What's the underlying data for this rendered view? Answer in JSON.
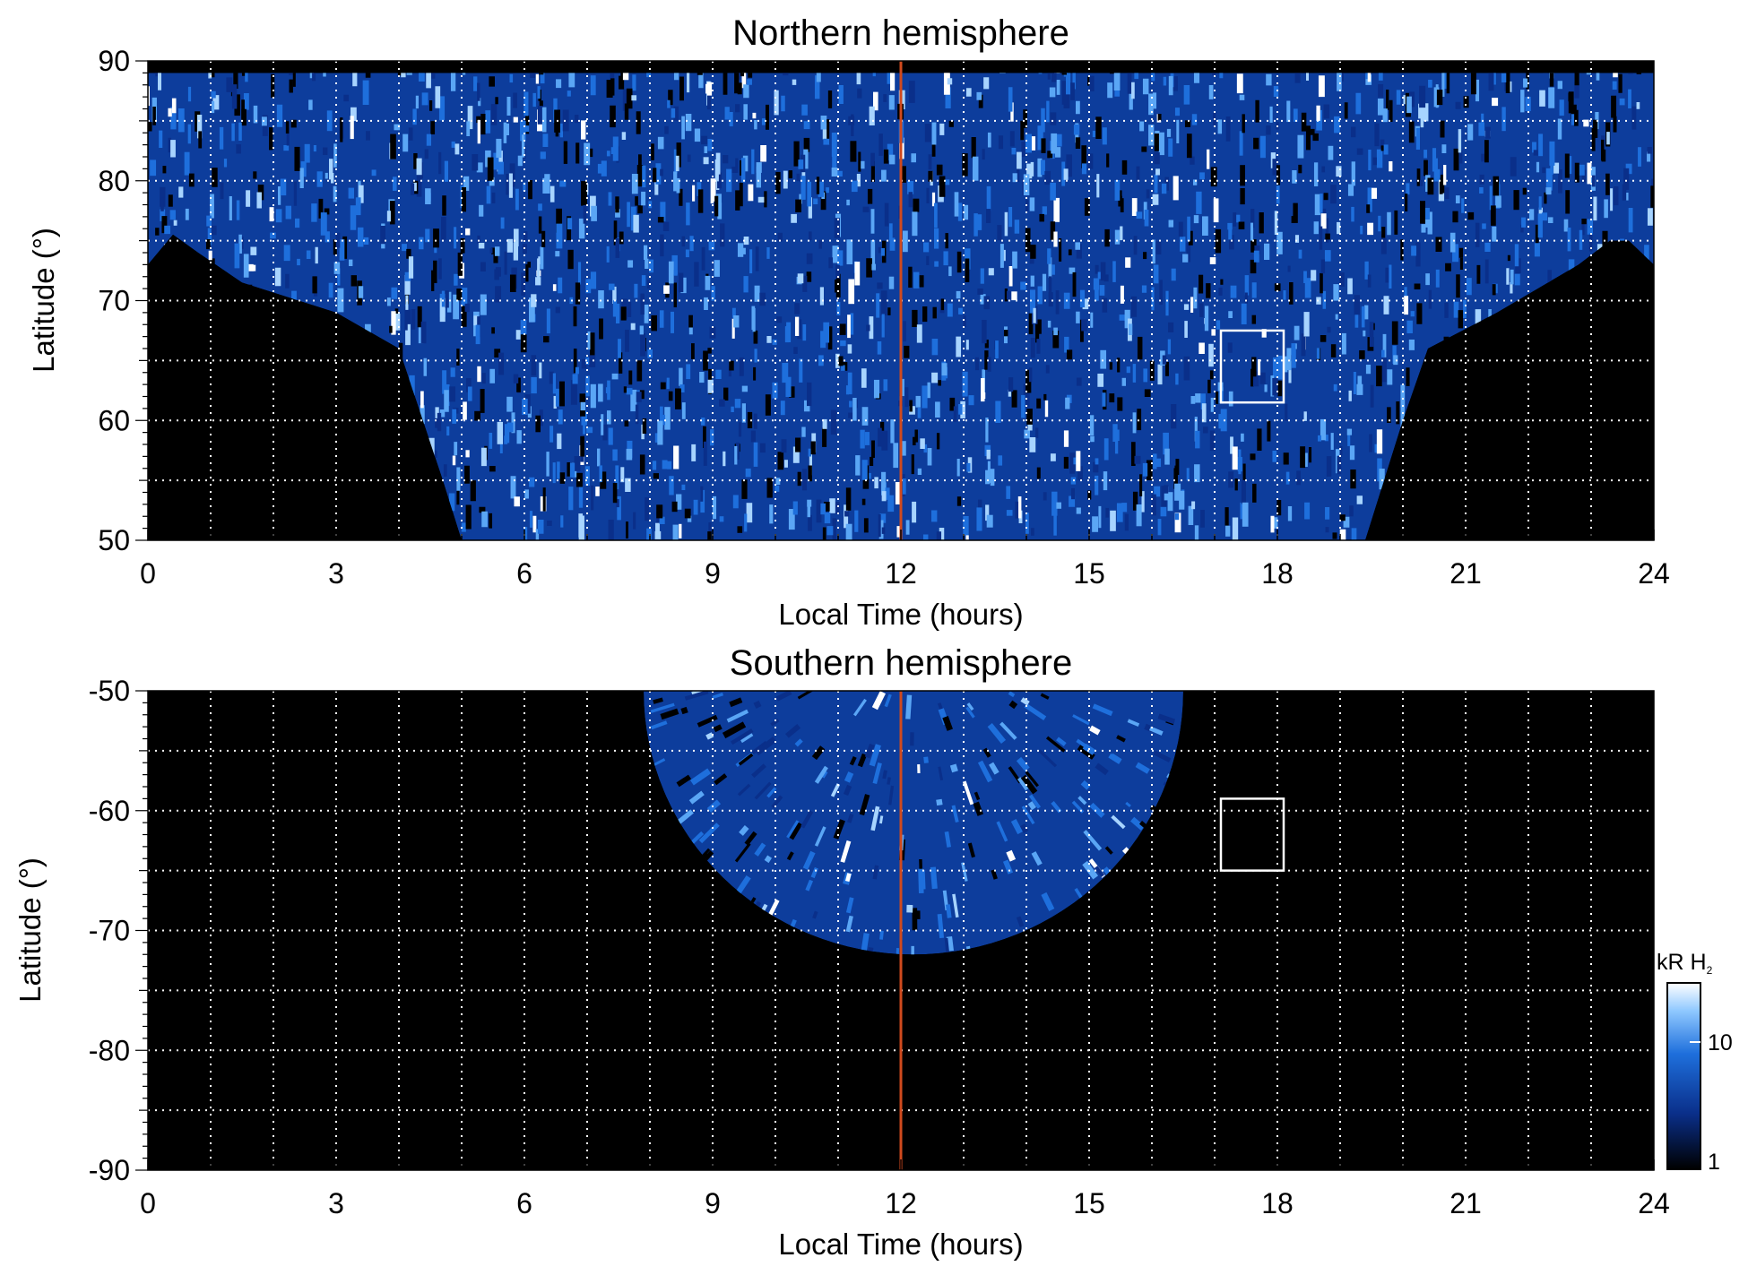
{
  "chart_data": [
    {
      "type": "heatmap",
      "title": "Northern hemisphere",
      "xlabel": "Local Time (hours)",
      "ylabel": "Latitude (°)",
      "xlim": [
        0,
        24
      ],
      "ylim": [
        50,
        90
      ],
      "x_ticks": [
        "0",
        "3",
        "6",
        "9",
        "12",
        "15",
        "18",
        "21",
        "24"
      ],
      "y_ticks": [
        "50",
        "60",
        "70",
        "80",
        "90"
      ],
      "grid": "dotted white, every 1 h and 5°",
      "noon_line": {
        "x": 12,
        "color": "#d04a1e"
      },
      "box": {
        "x": [
          17.1,
          18.1
        ],
        "y": [
          61.5,
          67.5
        ]
      },
      "coverage": "fan of emission from ~73° at 0/24 h down to 50° between 5 and 19.5 h",
      "colors": {
        "low": "#000000",
        "mid": "#1e6fdc",
        "high": "#ffffff"
      }
    },
    {
      "type": "heatmap",
      "title": "Southern hemisphere",
      "xlabel": "Local Time (hours)",
      "ylabel": "Latitude (°)",
      "xlim": [
        0,
        24
      ],
      "ylim": [
        -90,
        -50
      ],
      "x_ticks": [
        "0",
        "3",
        "6",
        "9",
        "12",
        "15",
        "18",
        "21",
        "24"
      ],
      "y_ticks": [
        "-50",
        "-60",
        "-70",
        "-80",
        "-90"
      ],
      "grid": "dotted white, every 1 h and 5°",
      "noon_line": {
        "x": 12,
        "color": "#d04a1e"
      },
      "box": {
        "x": [
          17.1,
          18.1
        ],
        "y": [
          -65.0,
          -59.0
        ]
      },
      "coverage": "semicircular emission region from -50° to ~-72°, centred on 12 h (about 8 to 16.5 h)",
      "colors": {
        "low": "#000000",
        "mid": "#1e6fdc",
        "high": "#ffffff"
      }
    }
  ],
  "colorbar": {
    "label": "kR H",
    "label_sub": "2",
    "ticks": [
      "10",
      "1"
    ],
    "scale": "log",
    "range": [
      1,
      25
    ],
    "colors": [
      "#000000",
      "#0a2f8a",
      "#1e6fdc",
      "#8fc8ff",
      "#ffffff"
    ]
  }
}
